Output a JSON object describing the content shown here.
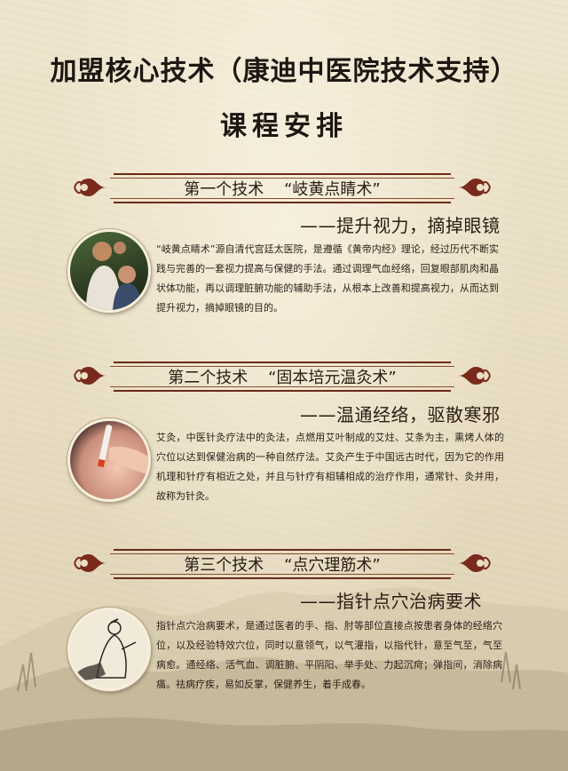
{
  "title": "加盟核心技术（康迪中医院技术支持）",
  "subtitle": "课程安排",
  "sections": [
    {
      "heading": "第一个技术    “岐黄点睛术”",
      "tagline": "——提升视力，摘掉眼镜",
      "text": "“岐黄点睛术”源自清代宫廷太医院，是遵循《黄帝内经》理论，经过历代不断实践与完善的一套视力提高与保健的手法。通过调理气血经络，回复眼部肌肉和晶状体功能，再以调理脏腑功能的辅助手法，从根本上改善和提高视力，从而达到提升视力，摘掉眼镜的目的。",
      "image": "doctor-treating-child-photo"
    },
    {
      "heading": "第二个技术    “固本培元温灸术”",
      "tagline": "——温通经络，驱散寒邪",
      "text": "艾灸，中医针灸疗法中的灸法，点燃用艾叶制成的艾炷、艾条为主，熏烤人体的穴位以达到保健治病的一种自然疗法。艾灸产生于中国远古时代，因为它的作用机理和针疗有相近之处，并且与针疗有相辅相成的治疗作用，通常针、灸并用，故称为针灸。",
      "image": "moxibustion-photo"
    },
    {
      "heading": "第三个技术    “点穴理筋术”",
      "tagline": "——指针点穴治病要术",
      "text": "指针点穴治病要术，是通过医者的手、指、肘等部位直接点按患者身体的经络穴位，以及经验特效穴位，同时以意领气，以气灌指，以指代针，意至气至，气至病愈。通经络、活气血、调脏腑、平阴阳、举手处、力起沉疴；弹指间，消除病痛。祛病疗疾，易如反掌，保健养生，着手成春。",
      "image": "ink-painting-physician"
    }
  ],
  "colors": {
    "banner_border": "#6b2a1a",
    "ornament": "#7a2a1c",
    "text": "#2b1f18",
    "background": "#eae0c6"
  }
}
